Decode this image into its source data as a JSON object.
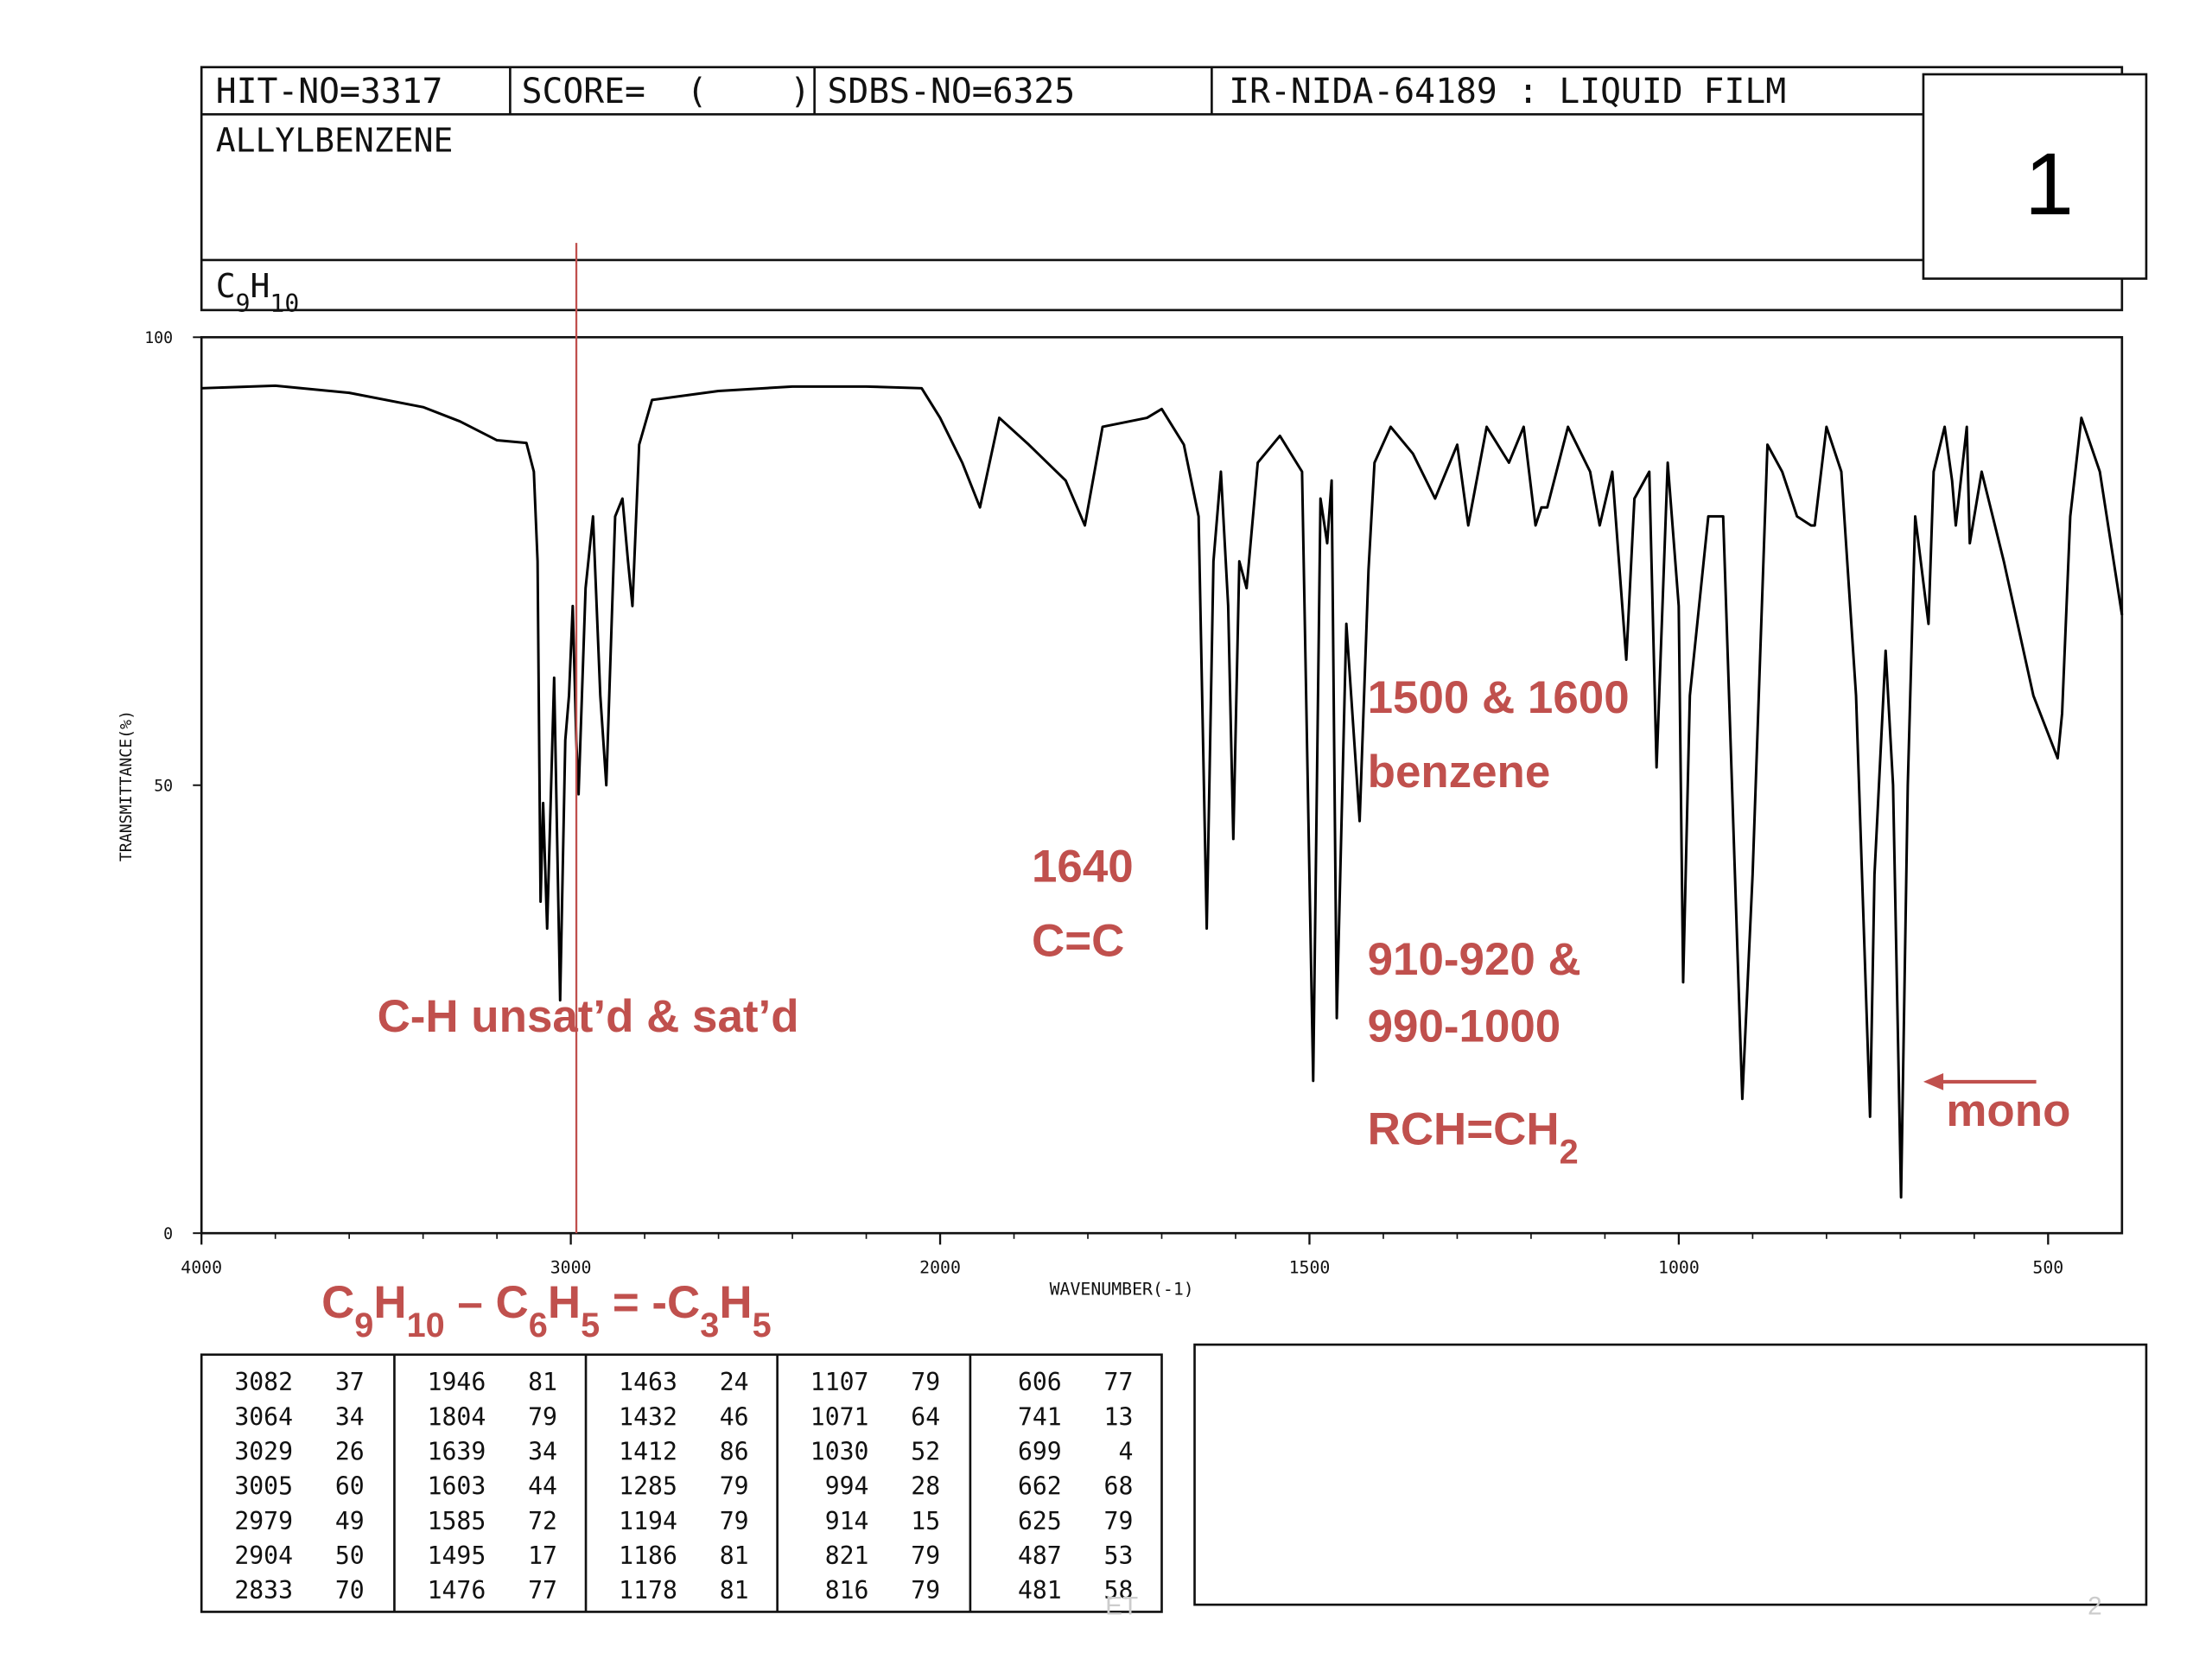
{
  "header": {
    "hit_no": "HIT-NO=3317",
    "score": "SCORE=  (    )",
    "sdbs_no": "SDBS-NO=6325",
    "method": "IR-NIDA-64189 : LIQUID FILM",
    "compound": "ALLYLBENZENE",
    "formula": [
      "C",
      "9",
      "H",
      "10"
    ],
    "slide_number": "1"
  },
  "chart_data": {
    "type": "line",
    "color": "#000000",
    "ylabel": "TRANSMITTANCE(%)",
    "xlabel": "WAVENUMBER(-1)",
    "xlim": [
      4000,
      400
    ],
    "xticks": [
      4000,
      3000,
      2000,
      1500,
      1000,
      500
    ],
    "ylim": [
      0,
      100
    ],
    "yticks": [
      0,
      50,
      100
    ],
    "x": [
      4000,
      3800,
      3600,
      3400,
      3300,
      3200,
      3120,
      3100,
      3090,
      3082,
      3075,
      3064,
      3045,
      3029,
      3015,
      3005,
      2995,
      2985,
      2979,
      2960,
      2940,
      2920,
      2904,
      2880,
      2860,
      2845,
      2833,
      2815,
      2780,
      2600,
      2400,
      2200,
      2050,
      2000,
      1970,
      1946,
      1920,
      1880,
      1830,
      1804,
      1780,
      1720,
      1700,
      1670,
      1650,
      1639,
      1630,
      1620,
      1610,
      1603,
      1595,
      1585,
      1570,
      1540,
      1510,
      1495,
      1485,
      1476,
      1470,
      1463,
      1450,
      1432,
      1420,
      1412,
      1390,
      1360,
      1330,
      1300,
      1285,
      1260,
      1230,
      1210,
      1194,
      1186,
      1178,
      1150,
      1120,
      1107,
      1090,
      1071,
      1060,
      1040,
      1030,
      1015,
      1000,
      994,
      985,
      960,
      940,
      914,
      900,
      880,
      860,
      840,
      821,
      816,
      800,
      780,
      760,
      741,
      735,
      720,
      710,
      699,
      690,
      680,
      662,
      655,
      640,
      630,
      625,
      610,
      606,
      590,
      560,
      520,
      487,
      481,
      470,
      455,
      430,
      400
    ],
    "values": [
      94.3,
      94.6,
      93.8,
      92.2,
      90.6,
      88.5,
      88.2,
      85,
      75,
      37,
      48,
      34,
      62,
      26,
      55,
      60,
      70,
      55,
      49,
      72,
      80,
      60,
      50,
      80,
      82,
      75,
      70,
      88,
      93,
      94,
      94.5,
      94.5,
      94.3,
      91,
      86,
      81,
      91,
      88,
      84,
      79,
      90,
      91,
      92,
      88,
      80,
      34,
      75,
      85,
      70,
      44,
      75,
      72,
      86,
      89,
      85,
      17,
      82,
      77,
      84,
      24,
      68,
      46,
      74,
      86,
      90,
      87,
      82,
      88,
      79,
      90,
      86,
      90,
      79,
      81,
      81,
      90,
      85,
      79,
      85,
      64,
      82,
      85,
      52,
      86,
      70,
      28,
      60,
      80,
      80,
      15,
      40,
      88,
      85,
      80,
      79,
      79,
      90,
      85,
      60,
      13,
      40,
      65,
      50,
      4,
      50,
      80,
      68,
      85,
      90,
      84,
      79,
      90,
      77,
      85,
      75,
      60,
      53,
      58,
      80,
      91,
      85,
      69
    ],
    "marker_x": 2985,
    "annotations": [
      {
        "text": [
          "C-H unsat’d & sat’d"
        ]
      },
      {
        "text": [
          "1640"
        ]
      },
      {
        "text": [
          "C=C"
        ]
      },
      {
        "text": [
          "1500 & 1600"
        ]
      },
      {
        "text": [
          "benzene"
        ]
      },
      {
        "text": [
          "910-920 &"
        ]
      },
      {
        "text": [
          "990-1000"
        ]
      },
      {
        "text": [
          "RCH=CH",
          "2"
        ]
      },
      {
        "text": [
          "mono"
        ]
      },
      {
        "text": [
          "C",
          "9",
          "H",
          "10",
          " – C",
          "6",
          "H",
          "5",
          " = -C",
          "3",
          "H",
          "5"
        ]
      }
    ]
  },
  "peak_table": [
    [
      [
        "3082",
        "37"
      ],
      [
        "3064",
        "34"
      ],
      [
        "3029",
        "26"
      ],
      [
        "3005",
        "60"
      ],
      [
        "2979",
        "49"
      ],
      [
        "2904",
        "50"
      ],
      [
        "2833",
        "70"
      ]
    ],
    [
      [
        "1946",
        "81"
      ],
      [
        "1804",
        "79"
      ],
      [
        "1639",
        "34"
      ],
      [
        "1603",
        "44"
      ],
      [
        "1585",
        "72"
      ],
      [
        "1495",
        "17"
      ],
      [
        "1476",
        "77"
      ]
    ],
    [
      [
        "1463",
        "24"
      ],
      [
        "1432",
        "46"
      ],
      [
        "1412",
        "86"
      ],
      [
        "1285",
        "79"
      ],
      [
        "1194",
        "79"
      ],
      [
        "1186",
        "81"
      ],
      [
        "1178",
        "81"
      ]
    ],
    [
      [
        "1107",
        "79"
      ],
      [
        "1071",
        "64"
      ],
      [
        "1030",
        "52"
      ],
      [
        "994",
        "28"
      ],
      [
        "914",
        "15"
      ],
      [
        "821",
        "79"
      ],
      [
        "816",
        "79"
      ]
    ],
    [
      [
        "606",
        "77"
      ],
      [
        "741",
        "13"
      ],
      [
        "699",
        "4"
      ],
      [
        "662",
        "68"
      ],
      [
        "625",
        "79"
      ],
      [
        "487",
        "53"
      ],
      [
        "481",
        "58"
      ]
    ]
  ],
  "footer": {
    "left": "ET",
    "right": "2"
  }
}
